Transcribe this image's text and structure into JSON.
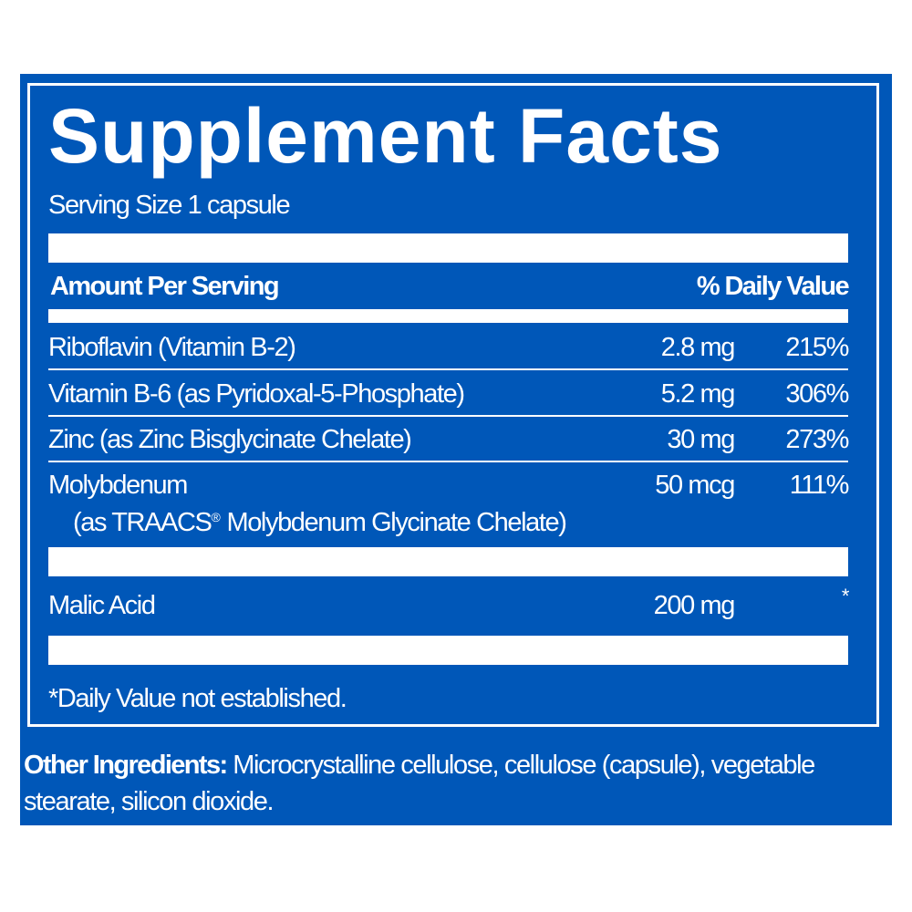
{
  "title": "Supplement Facts",
  "serving_size": "Serving Size 1 capsule",
  "header": {
    "amount": "Amount Per Serving",
    "daily_value": "% Daily Value"
  },
  "rows": [
    {
      "name": "Riboflavin (Vitamin B-2)",
      "amount": "2.8 mg",
      "dv": "215%"
    },
    {
      "name": "Vitamin B-6 (as Pyridoxal-5-Phosphate)",
      "amount": "5.2 mg",
      "dv": "306%"
    },
    {
      "name": "Zinc (as Zinc Bisglycinate Chelate)",
      "amount": "30 mg",
      "dv": "273%"
    },
    {
      "name": "Molybdenum",
      "sub_pre": "(as TRAACS",
      "sub_mark": "®",
      "sub_post": " Molybdenum Glycinate Chelate)",
      "amount": "50 mcg",
      "dv": "111%"
    },
    {
      "name": "Malic Acid",
      "amount": "200 mg",
      "dv": "*"
    }
  ],
  "footnote": "*Daily Value not established.",
  "other_ingredients": {
    "label": "Other Ingredients:",
    "line1": " Microcrystalline cellulose, cellulose (capsule), vegetable",
    "line2": "stearate, silicon dioxide."
  },
  "colors": {
    "panel": "#0057b8",
    "text": "#ffffff"
  }
}
